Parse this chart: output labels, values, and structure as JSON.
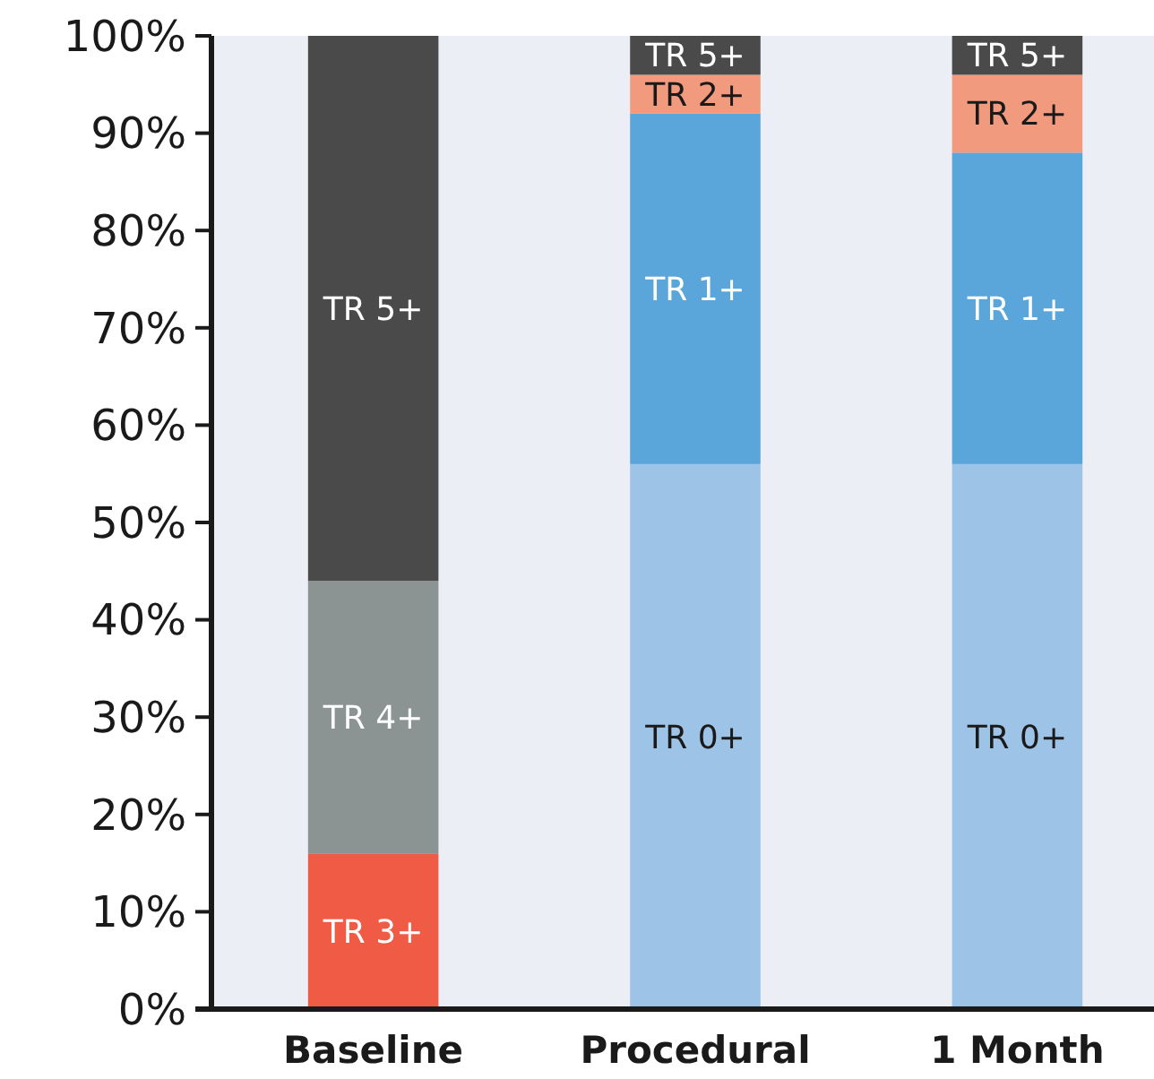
{
  "chart_data": {
    "type": "bar",
    "stacked": true,
    "categories": [
      "Baseline",
      "Procedural",
      "1 Month"
    ],
    "series": [
      {
        "name": "TR 0+",
        "color": "#9dc3e6",
        "values": [
          0,
          56,
          56
        ]
      },
      {
        "name": "TR 1+",
        "color": "#5aa5da",
        "values": [
          0,
          36,
          32
        ]
      },
      {
        "name": "TR 2+",
        "color": "#f29a7e",
        "values": [
          0,
          4,
          8
        ]
      },
      {
        "name": "TR 3+",
        "color": "#ef5b45",
        "values": [
          16,
          0,
          0
        ]
      },
      {
        "name": "TR 4+",
        "color": "#8c9393",
        "values": [
          28,
          0,
          0
        ]
      },
      {
        "name": "TR 5+",
        "color": "#4a4a4a",
        "values": [
          56,
          4,
          4
        ]
      }
    ],
    "ylim": [
      0,
      100
    ],
    "yticks": [
      {
        "value": 0,
        "label": "0%"
      },
      {
        "value": 10,
        "label": "10%"
      },
      {
        "value": 20,
        "label": "20%"
      },
      {
        "value": 30,
        "label": "30%"
      },
      {
        "value": 40,
        "label": "40%"
      },
      {
        "value": 50,
        "label": "50%"
      },
      {
        "value": 60,
        "label": "60%"
      },
      {
        "value": 70,
        "label": "70%"
      },
      {
        "value": 80,
        "label": "80%"
      },
      {
        "value": 90,
        "label": "90%"
      },
      {
        "value": 100,
        "label": "100%"
      }
    ],
    "grid": false
  }
}
